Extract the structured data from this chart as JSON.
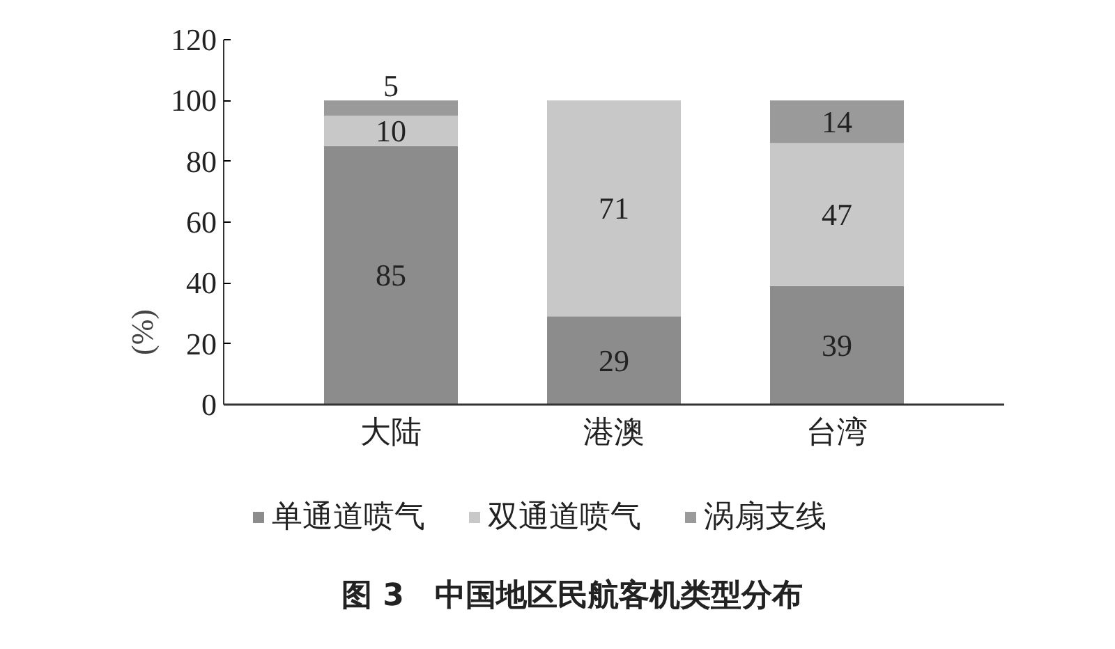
{
  "chart_data": {
    "type": "bar",
    "stacked": true,
    "title": "图 3　中国地区民航客机类型分布",
    "ylabel": "(%)",
    "categories": [
      "大陆",
      "港澳",
      "台湾"
    ],
    "series": [
      {
        "name": "单通道喷气",
        "color": "#8c8c8c",
        "values": [
          85,
          29,
          39
        ],
        "value_labels": [
          "85",
          "29",
          "39"
        ]
      },
      {
        "name": "双通道喷气",
        "color": "#c8c8c8",
        "values": [
          10,
          71,
          47
        ],
        "value_labels": [
          "10",
          "71",
          "47"
        ]
      },
      {
        "name": "涡扇支线",
        "color": "#9a9a9a",
        "values": [
          5,
          0,
          14
        ],
        "value_labels": [
          "5",
          null,
          "14"
        ]
      }
    ],
    "ylim": [
      0,
      120
    ],
    "yticks": [
      0,
      20,
      40,
      60,
      80,
      100,
      120
    ],
    "grid": false,
    "legend": "bottom"
  }
}
